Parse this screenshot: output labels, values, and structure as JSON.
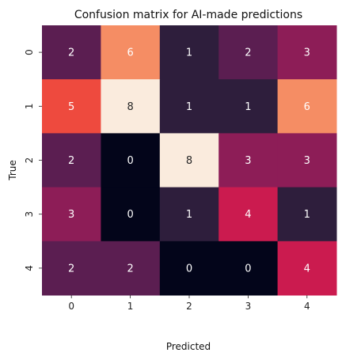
{
  "chart_data": {
    "type": "heatmap",
    "title": "Confusion matrix for AI-made predictions",
    "xlabel": "Predicted",
    "ylabel": "True",
    "x_categories": [
      "0",
      "1",
      "2",
      "3",
      "4"
    ],
    "y_categories": [
      "0",
      "1",
      "2",
      "3",
      "4"
    ],
    "values": [
      [
        2,
        6,
        1,
        2,
        3
      ],
      [
        5,
        8,
        1,
        1,
        6
      ],
      [
        2,
        0,
        8,
        3,
        3
      ],
      [
        3,
        0,
        1,
        4,
        1
      ],
      [
        2,
        2,
        0,
        0,
        4
      ]
    ],
    "value_range": [
      0,
      8
    ],
    "colorbar": false,
    "colors": {
      "0": "#03051a",
      "1": "#2e1e3c",
      "2": "#5b1e51",
      "3": "#8d1d57",
      "4": "#cb1b4f",
      "5": "#ee4a3e",
      "6": "#f58d64",
      "8": "#faebdd"
    }
  }
}
